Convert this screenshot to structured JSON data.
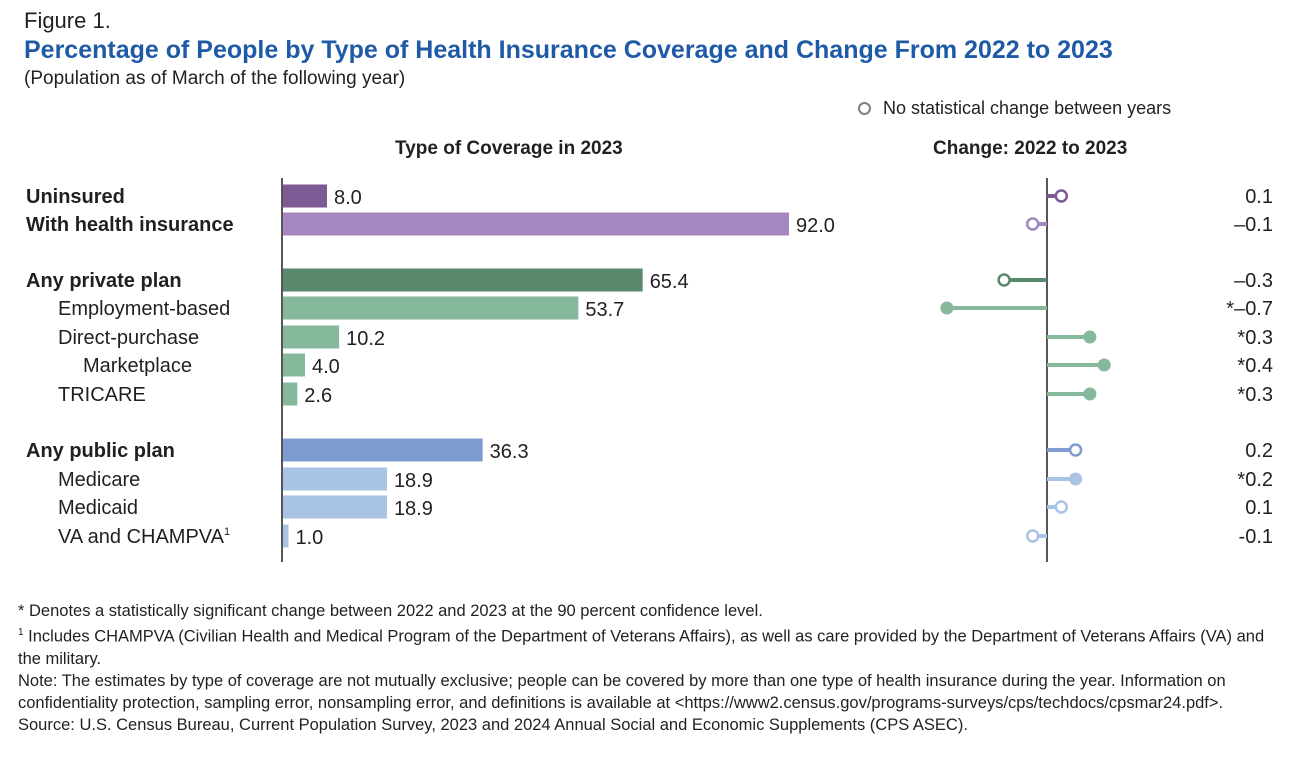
{
  "figure_label": "Figure 1.",
  "legend": {
    "no_change": "No statistical change between years"
  },
  "footnotes": {
    "significance": "* Denotes a statistically significant change between 2022 and 2023 at the 90 percent confidence level.",
    "note1_marker": "1",
    "note1": "Includes CHAMPVA (Civilian Health and Medical Program of the Department of Veterans Affairs), as well as care provided by the Department of Veterans Affairs (VA) and the military.",
    "note": "Note: The estimates by type of coverage are not mutually exclusive; people can be covered by more than one type of health insurance during the year. Information on confidentiality protection, sampling error, nonsampling error, and definitions is available at <https://www2.census.gov/programs-surveys/cps/techdocs/cpsmar24.pdf>.",
    "source": "Source: U.S. Census Bureau, Current Population Survey, 2023 and 2024 Annual Social and Economic Supplements (CPS ASEC)."
  },
  "colors": {
    "uninsured": "#7c5a94",
    "insured": "#a487c0",
    "private_dark": "#5a8a6e",
    "private_light": "#86b89c",
    "public_dark": "#7e9ccf",
    "public_light": "#a9c3e4",
    "title": "#1f5aa6",
    "no_change_marker": "#7f7f7f"
  },
  "chart_data": [
    {
      "type": "bar",
      "orientation": "horizontal",
      "title": "Percentage of People by Type of Health Insurance Coverage and Change From 2022 to 2023",
      "subtitle": "(Population as of March of the following year)",
      "panel_title": "Type of Coverage in 2023",
      "categories": [
        "Uninsured",
        "With health insurance",
        "Any private plan",
        "Employment-based",
        "Direct-purchase",
        "Marketplace",
        "TRICARE",
        "Any public plan",
        "Medicare",
        "Medicaid",
        "VA and CHAMPVA"
      ],
      "category_superscripts": [
        "",
        "",
        "",
        "",
        "",
        "",
        "",
        "",
        "",
        "",
        "1"
      ],
      "bold": [
        true,
        true,
        true,
        false,
        false,
        false,
        false,
        true,
        false,
        false,
        false
      ],
      "indent_level": [
        0,
        0,
        0,
        1,
        1,
        2,
        1,
        0,
        1,
        1,
        1
      ],
      "group": [
        "insurance",
        "insurance",
        "private",
        "private",
        "private",
        "private",
        "private",
        "public",
        "public",
        "public",
        "public"
      ],
      "values": [
        8.0,
        92.0,
        65.4,
        53.7,
        10.2,
        4.0,
        2.6,
        36.3,
        18.9,
        18.9,
        1.0
      ],
      "labels": [
        "8.0",
        "92.0",
        "65.4",
        "53.7",
        "10.2",
        "4.0",
        "2.6",
        "36.3",
        "18.9",
        "18.9",
        "1.0"
      ],
      "xlim": [
        0,
        100
      ]
    },
    {
      "type": "lollipop",
      "panel_title": "Change: 2022 to 2023",
      "categories": [
        "Uninsured",
        "With health insurance",
        "Any private plan",
        "Employment-based",
        "Direct-purchase",
        "Marketplace",
        "TRICARE",
        "Any public plan",
        "Medicare",
        "Medicaid",
        "VA and CHAMPVA"
      ],
      "values": [
        0.1,
        -0.1,
        -0.3,
        -0.7,
        0.3,
        0.4,
        0.3,
        0.2,
        0.2,
        0.1,
        -0.1
      ],
      "labels": [
        "0.1",
        "–0.1",
        "–0.3",
        "*–0.7",
        "*0.3",
        "*0.4",
        "*0.3",
        "0.2",
        "*0.2",
        "0.1",
        "-0.1"
      ],
      "significant": [
        false,
        false,
        false,
        true,
        true,
        true,
        true,
        false,
        true,
        false,
        false
      ],
      "xlim": [
        -0.7,
        0.4
      ]
    }
  ]
}
